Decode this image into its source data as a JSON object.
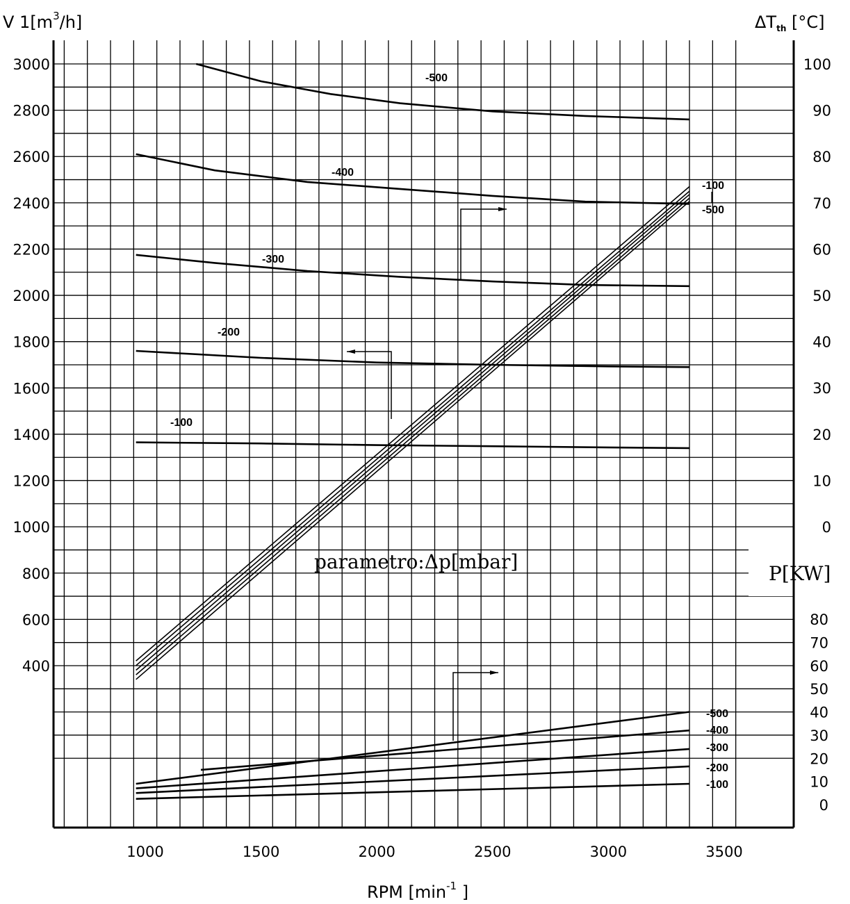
{
  "chart_data": {
    "type": "line",
    "x_axis": {
      "label": "RPM  [min",
      "label_sup": "-1",
      "label_end": " ]",
      "range": [
        600,
        3800
      ],
      "ticks": [
        "1000",
        "1500",
        "2000",
        "2500",
        "3000",
        "3500"
      ]
    },
    "y_left": {
      "label": "V 1[m",
      "label_sup": "3",
      "label_end": "/h]",
      "range": [
        0,
        3200
      ],
      "ticks": [
        "3000",
        "2800",
        "2600",
        "2400",
        "2200",
        "2000",
        "1800",
        "1600",
        "1400",
        "1200",
        "1000",
        "800",
        "600",
        "400"
      ]
    },
    "y_right_temp": {
      "label": "ΔT",
      "label_sub": "th",
      "label_end": " [°C]",
      "range": [
        0,
        100
      ],
      "ticks": [
        "100",
        "90",
        "80",
        "70",
        "60",
        "50",
        "40",
        "30",
        "20",
        "10",
        "0"
      ]
    },
    "y_right_power": {
      "label": "P[KW]",
      "range": [
        0,
        80
      ],
      "ticks": [
        "80",
        "70",
        "60",
        "50",
        "40",
        "30",
        "20",
        "10",
        "0"
      ]
    },
    "parameter_label": "parametro:Δp[mbar]",
    "flow_series": [
      {
        "name": "-500",
        "x": [
          1220,
          1500,
          1800,
          2100,
          2500,
          2900,
          3350
        ],
        "y": [
          3000,
          2925,
          2870,
          2830,
          2795,
          2775,
          2760
        ]
      },
      {
        "name": "-400",
        "x": [
          960,
          1300,
          1700,
          2100,
          2500,
          2900,
          3350
        ],
        "y": [
          2610,
          2540,
          2490,
          2460,
          2430,
          2405,
          2395
        ]
      },
      {
        "name": "-300",
        "x": [
          960,
          1300,
          1700,
          2100,
          2500,
          2900,
          3350
        ],
        "y": [
          2175,
          2140,
          2105,
          2080,
          2060,
          2045,
          2040
        ]
      },
      {
        "name": "-200",
        "x": [
          960,
          1500,
          2000,
          2500,
          3000,
          3350
        ],
        "y": [
          1760,
          1730,
          1710,
          1700,
          1693,
          1690
        ]
      },
      {
        "name": "-100",
        "x": [
          960,
          1500,
          2000,
          2500,
          3000,
          3350
        ],
        "y": [
          1365,
          1360,
          1353,
          1348,
          1343,
          1340
        ]
      }
    ],
    "flow_labels": [
      "-500",
      "-400",
      "-300",
      "-200",
      "-100"
    ],
    "temp_series": [
      {
        "name": "-100",
        "x": [
          960,
          3350
        ],
        "y": [
          -29,
          73.5
        ]
      },
      {
        "name": "",
        "x": [
          960,
          3350
        ],
        "y": [
          -30,
          72.5
        ]
      },
      {
        "name": "",
        "x": [
          960,
          3350
        ],
        "y": [
          -31,
          71.8
        ]
      },
      {
        "name": "",
        "x": [
          960,
          3350
        ],
        "y": [
          -32,
          71
        ]
      },
      {
        "name": "-500",
        "x": [
          960,
          3350
        ],
        "y": [
          -33,
          70.3
        ]
      }
    ],
    "temp_labels": [
      "-100",
      "-500"
    ],
    "power_series": [
      {
        "name": "-500",
        "x": [
          960,
          3350
        ],
        "y": [
          9,
          40
        ]
      },
      {
        "name": "-400",
        "x": [
          1240,
          3350
        ],
        "y": [
          15,
          32
        ]
      },
      {
        "name": "-300",
        "x": [
          960,
          3350
        ],
        "y": [
          7,
          24
        ]
      },
      {
        "name": "-200",
        "x": [
          960,
          3350
        ],
        "y": [
          5,
          16.5
        ]
      },
      {
        "name": "-100",
        "x": [
          960,
          3350
        ],
        "y": [
          2.5,
          9
        ]
      }
    ],
    "power_labels": [
      "-500",
      "-400",
      "-300",
      "-200",
      "-100"
    ],
    "grid": true
  }
}
